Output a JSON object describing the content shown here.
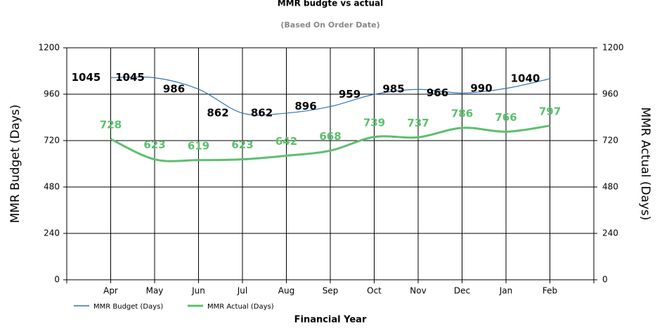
{
  "chart_data": {
    "type": "line",
    "title": "MMR budgte vs actual",
    "subtitle": "(Based On Order Date)",
    "x_label": "Financial Year",
    "y_label": "MMR Budget (Days)",
    "y2_label": "MMR Actual (Days)",
    "categories": [
      "Apr",
      "May",
      "Jun",
      "Jul",
      "Aug",
      "Sep",
      "Oct",
      "Nov",
      "Dec",
      "Jan",
      "Feb"
    ],
    "series": [
      {
        "name": "MMR Budget (Days)",
        "color": "#2e75b6",
        "values": [
          1045,
          1045,
          986,
          862,
          862,
          896,
          959,
          985,
          966,
          990,
          1040
        ]
      },
      {
        "name": "MMR Actual (Days)",
        "color": "#5cbf6e",
        "axis": "y2",
        "values": [
          728,
          623,
          619,
          623,
          642,
          668,
          739,
          737,
          786,
          766,
          797
        ]
      }
    ],
    "ylim": [
      0,
      1200
    ],
    "yticks": [
      0,
      240,
      480,
      720,
      960,
      1200
    ],
    "y2lim": [
      0,
      1200
    ],
    "y2ticks": [
      0,
      240,
      480,
      720,
      960,
      1200
    ],
    "grid": true,
    "legend": "bottom-left"
  }
}
